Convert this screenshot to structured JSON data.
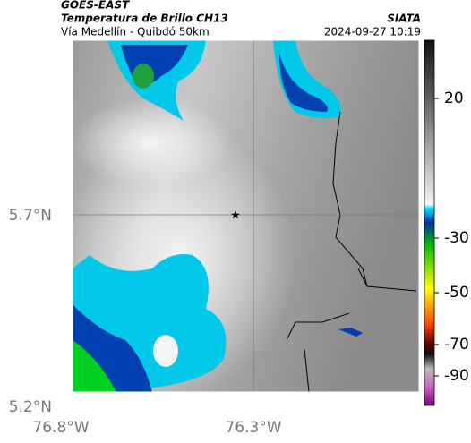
{
  "header": {
    "source": "GOES-EAST",
    "title": "Temperatura de Brillo CH13",
    "subtitle": "Vía Medellín - Quibdó 50km",
    "brand": "SIATA",
    "timestamp": "2024-09-27 10:19"
  },
  "map": {
    "lat_labels": [
      "5.7°N",
      "5.2°N"
    ],
    "lon_labels": [
      "76.8°W",
      "76.3°W"
    ]
  },
  "colorbar": {
    "ticks": [
      20,
      -30,
      -50,
      -70,
      -90
    ]
  }
}
